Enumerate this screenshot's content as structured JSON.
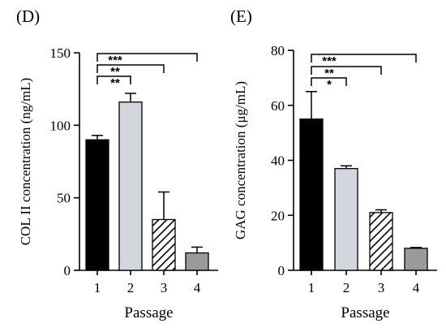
{
  "chart_data": [
    {
      "type": "bar",
      "panel_label": "(D)",
      "xlabel": "Passage",
      "ylabel": "COL II concentration (ng/mL)",
      "categories": [
        "1",
        "2",
        "3",
        "4"
      ],
      "values": [
        90,
        116,
        35,
        12
      ],
      "errors": [
        3,
        6,
        19,
        4
      ],
      "ylim": [
        0,
        150
      ],
      "yticks": [
        0,
        50,
        100,
        150
      ],
      "bar_styles": [
        {
          "fill": "#000000",
          "pattern": "solid"
        },
        {
          "fill": "#d3d6dd",
          "pattern": "solid"
        },
        {
          "fill": "#ffffff",
          "pattern": "diagonal-hatch"
        },
        {
          "fill": "#9a9a9a",
          "pattern": "solid"
        }
      ],
      "significance": [
        {
          "from": "1",
          "to": "2",
          "label": "**"
        },
        {
          "from": "1",
          "to": "3",
          "label": "**"
        },
        {
          "from": "1",
          "to": "4",
          "label": "***"
        }
      ]
    },
    {
      "type": "bar",
      "panel_label": "(E)",
      "xlabel": "Passage",
      "ylabel": "GAG concentration (μg/mL)",
      "categories": [
        "1",
        "2",
        "3",
        "4"
      ],
      "values": [
        55,
        37,
        21,
        8
      ],
      "errors": [
        10,
        1,
        1,
        0.3
      ],
      "ylim": [
        0,
        80
      ],
      "yticks": [
        0,
        20,
        40,
        60,
        80
      ],
      "bar_styles": [
        {
          "fill": "#000000",
          "pattern": "solid"
        },
        {
          "fill": "#d3d6dd",
          "pattern": "solid"
        },
        {
          "fill": "#ffffff",
          "pattern": "diagonal-hatch"
        },
        {
          "fill": "#9a9a9a",
          "pattern": "solid"
        }
      ],
      "significance": [
        {
          "from": "1",
          "to": "2",
          "label": "*"
        },
        {
          "from": "1",
          "to": "3",
          "label": "**"
        },
        {
          "from": "1",
          "to": "4",
          "label": "***"
        }
      ]
    }
  ]
}
